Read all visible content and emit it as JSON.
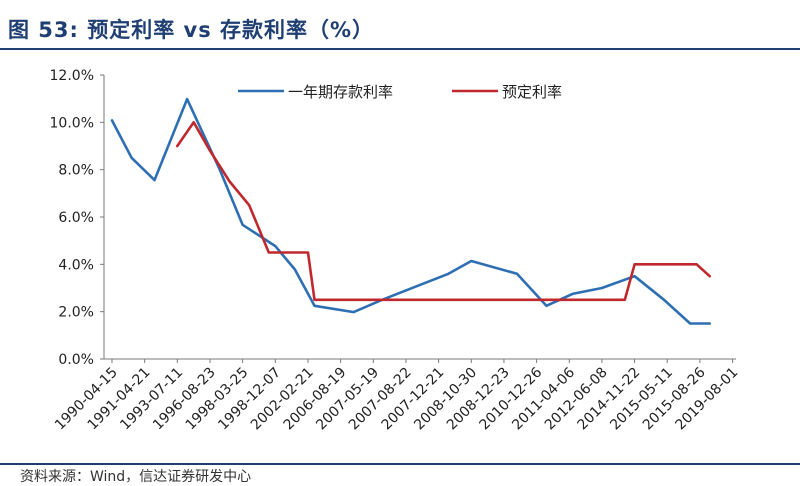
{
  "title": "图 53: 预定利率 vs 存款利率（%）",
  "source": "资料来源：Wind，信达证券研发中心",
  "chart_data": {
    "type": "line",
    "title": "预定利率 vs 存款利率（%）",
    "xlabel": "",
    "ylabel": "",
    "ylim": [
      0,
      12
    ],
    "y_tick_labels": [
      "0.0%",
      "2.0%",
      "4.0%",
      "6.0%",
      "8.0%",
      "10.0%",
      "12.0%"
    ],
    "categories": [
      "1990-04-15",
      "1991-04-21",
      "1993-07-11",
      "1996-08-23",
      "1998-03-25",
      "1998-12-07",
      "2002-02-21",
      "2006-08-19",
      "2007-05-19",
      "2007-08-22",
      "2007-12-21",
      "2008-10-30",
      "2008-12-23",
      "2010-12-26",
      "2011-04-06",
      "2012-06-08",
      "2014-11-22",
      "2015-05-11",
      "2015-08-26",
      "2019-08-01"
    ],
    "legend_position": "top-right",
    "grid": false,
    "series": [
      {
        "name": "一年期存款利率",
        "color": "#2e6fb4",
        "x": [
          0,
          0.6,
          1.3,
          2.3,
          3.3,
          4.0,
          5.0,
          5.6,
          6.2,
          7.4,
          8.3,
          9.3,
          10.3,
          11.0,
          12.4,
          13.3,
          14.1,
          15.0,
          16.0,
          16.9,
          17.7,
          18.3
        ],
        "values": [
          10.08,
          8.5,
          7.56,
          10.98,
          8.0,
          5.67,
          4.77,
          3.78,
          2.25,
          1.98,
          2.52,
          3.06,
          3.6,
          4.14,
          3.6,
          2.25,
          2.75,
          3.0,
          3.5,
          2.5,
          1.5,
          1.5
        ]
      },
      {
        "name": "预定利率",
        "color": "#c0282d",
        "x": [
          2.0,
          2.5,
          3.0,
          3.6,
          4.2,
          4.8,
          5.0,
          5.6,
          6.0,
          6.2,
          15.7,
          16.0,
          17.9,
          18.3
        ],
        "values": [
          9.0,
          10.0,
          8.8,
          7.5,
          6.5,
          4.5,
          4.5,
          4.5,
          4.5,
          2.5,
          2.5,
          4.0,
          4.0,
          3.5
        ]
      }
    ]
  }
}
